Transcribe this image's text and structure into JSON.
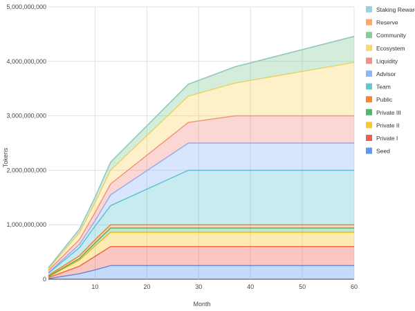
{
  "chart_data": {
    "type": "area",
    "stacked": true,
    "title": "",
    "xlabel": "Month",
    "ylabel": "Tokens",
    "xlim": [
      1,
      60
    ],
    "ylim": [
      0,
      5000000000
    ],
    "x_ticks": [
      10,
      20,
      30,
      40,
      50,
      60
    ],
    "y_ticks": [
      0,
      1000000000,
      2000000000,
      3000000000,
      4000000000,
      5000000000
    ],
    "y_tick_labels": [
      "0",
      "1,000,000,000",
      "2,000,000,000",
      "3,000,000,000",
      "4,000,000,000",
      "5,000,000,000"
    ],
    "x_tick_labels": [
      "10",
      "20",
      "30",
      "40",
      "50",
      "60"
    ],
    "grid": true,
    "legend_position": "right",
    "x": [
      1,
      7,
      10,
      13,
      28,
      37,
      60
    ],
    "series": [
      {
        "name": "Seed",
        "color": "#4285f4",
        "values": [
          10000000,
          100000000,
          170000000,
          250000000,
          250000000,
          250000000,
          250000000
        ]
      },
      {
        "name": "Private I",
        "color": "#ea4335",
        "values": [
          20000000,
          140000000,
          250000000,
          350000000,
          350000000,
          350000000,
          350000000
        ]
      },
      {
        "name": "Private II",
        "color": "#fbbc04",
        "values": [
          15000000,
          110000000,
          190000000,
          260000000,
          260000000,
          260000000,
          260000000
        ]
      },
      {
        "name": "Private III",
        "color": "#34a853",
        "values": [
          5000000,
          30000000,
          55000000,
          80000000,
          80000000,
          80000000,
          80000000
        ]
      },
      {
        "name": "Public",
        "color": "#ff6d01",
        "values": [
          20000000,
          50000000,
          60000000,
          60000000,
          60000000,
          60000000,
          60000000
        ]
      },
      {
        "name": "Team",
        "color": "#46bdc6",
        "values": [
          40000000,
          150000000,
          250000000,
          350000000,
          1000000000,
          1000000000,
          1000000000
        ]
      },
      {
        "name": "Advisor",
        "color": "#7baaf7",
        "values": [
          10000000,
          60000000,
          100000000,
          200000000,
          500000000,
          500000000,
          500000000
        ]
      },
      {
        "name": "Liquidity",
        "color": "#f07b72",
        "values": [
          40000000,
          90000000,
          150000000,
          200000000,
          380000000,
          500000000,
          500000000
        ]
      },
      {
        "name": "Ecosystem",
        "color": "#fcd04f",
        "values": [
          30000000,
          120000000,
          180000000,
          250000000,
          480000000,
          600000000,
          980000000
        ]
      },
      {
        "name": "Community",
        "color": "#71c287",
        "values": [
          20000000,
          70000000,
          100000000,
          150000000,
          220000000,
          300000000,
          480000000
        ]
      },
      {
        "name": "Reserve",
        "color": "#ff994d",
        "values": [
          0,
          0,
          0,
          0,
          0,
          0,
          0
        ]
      },
      {
        "name": "Staking Reward",
        "color": "#7ed1d7",
        "values": [
          0,
          0,
          0,
          0,
          0,
          0,
          0
        ]
      }
    ],
    "legend_order": [
      "Staking Reward",
      "Reserve",
      "Community",
      "Ecosystem",
      "Liquidity",
      "Advisor",
      "Team",
      "Public",
      "Private III",
      "Private II",
      "Private I",
      "Seed"
    ]
  }
}
